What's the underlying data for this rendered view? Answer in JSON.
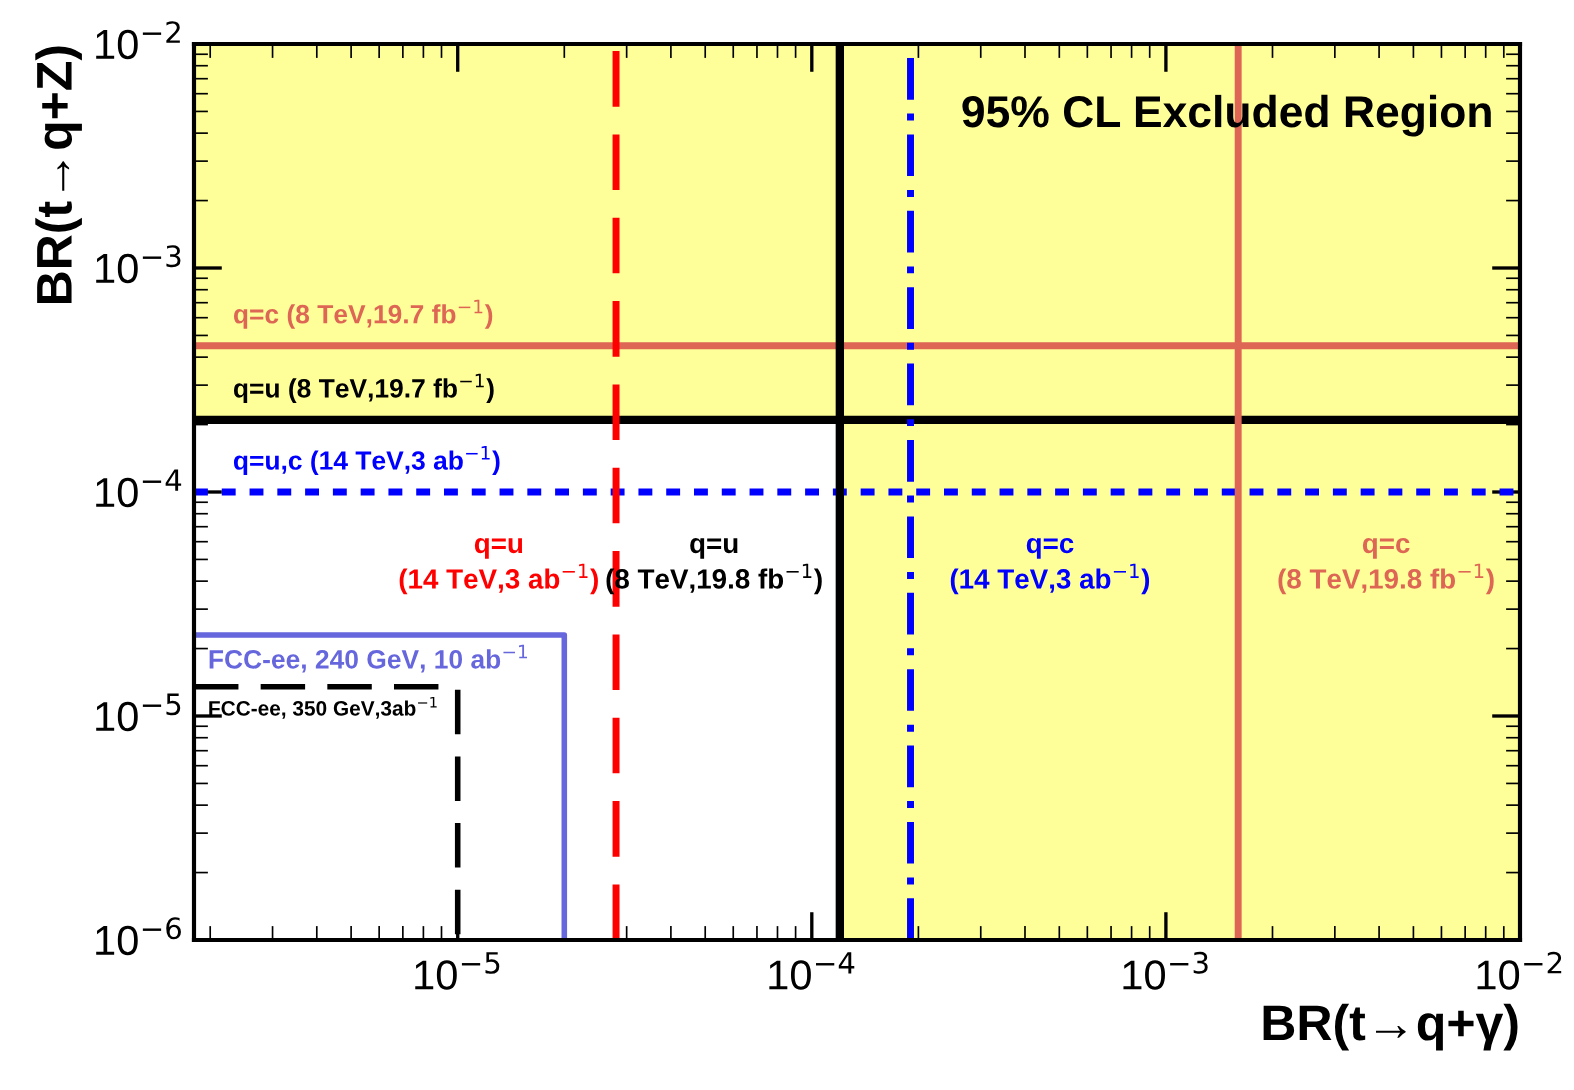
{
  "chart_data": {
    "type": "line",
    "xlabel": "BR(t→q+γ)",
    "ylabel": "BR(t→q+Z)",
    "log": "xy",
    "xlim": [
      1.8e-06,
      0.01
    ],
    "ylim": [
      1e-06,
      0.01
    ],
    "xticks": [
      {
        "value": 1e-05,
        "label": "10$^{−5}$"
      },
      {
        "value": 0.0001,
        "label": "10$^{−4}$"
      },
      {
        "value": 0.001,
        "label": "10$^{−3}$"
      },
      {
        "value": 0.01,
        "label": "10$^{−2}$"
      }
    ],
    "yticks": [
      {
        "value": 1e-06,
        "label": "10$^{−6}$"
      },
      {
        "value": 1e-05,
        "label": "10$^{−5}$"
      },
      {
        "value": 0.0001,
        "label": "10$^{−4}$"
      },
      {
        "value": 0.001,
        "label": "10$^{−3}$"
      },
      {
        "value": 0.01,
        "label": "10$^{−2}$"
      }
    ],
    "grid": false,
    "bands": [
      {
        "axis": "y",
        "from": 0.00021,
        "to": 0.01,
        "color": "#ffff99"
      },
      {
        "axis": "x",
        "from": 0.00012,
        "to": 0.01,
        "color": "#ffff99"
      }
    ],
    "series": [
      {
        "name": "FCC-ee, 240 GeV, 10 ab$^{−1}$",
        "color": "#6666dd",
        "line_style": "solid",
        "x": [
          1.8e-06,
          2e-05,
          2e-05
        ],
        "values": [
          2.3e-05,
          2.3e-05,
          1e-06
        ]
      },
      {
        "name": "FCC-ee, 350 GeV,3ab$^{−1}$",
        "color": "#000000",
        "line_style": "dashed",
        "x": [
          1.8e-06,
          1e-05,
          1e-05
        ],
        "values": [
          1.35e-05,
          1.35e-05,
          1e-06
        ]
      }
    ],
    "ref_lines": [
      {
        "axis": "y",
        "value": 0.00045,
        "color": "#dd6655",
        "line_style": "solid",
        "label": "q=c (8 TeV,19.7 fb$^{−1}$)"
      },
      {
        "axis": "y",
        "value": 0.00021,
        "color": "#000000",
        "line_style": "solid",
        "label": "q=u (8 TeV,19.7 fb$^{−1}$)"
      },
      {
        "axis": "y",
        "value": 0.0001,
        "color": "#0000ff",
        "line_style": "dotted",
        "label": "q=u,c (14 TeV,3 ab$^{−1}$)"
      },
      {
        "axis": "x",
        "value": 2.8e-05,
        "color": "#ff0000",
        "line_style": "dashed",
        "label": "q=u\n(14 TeV,3 ab$^{−1}$)"
      },
      {
        "axis": "x",
        "value": 0.00012,
        "color": "#000000",
        "line_style": "solid",
        "label": "q=u\n(8 TeV,19.8 fb$^{−1}$)"
      },
      {
        "axis": "x",
        "value": 0.00019,
        "color": "#0000ff",
        "line_style": "dashdot",
        "label": "q=c\n(14 TeV,3 ab$^{−1}$)"
      },
      {
        "axis": "x",
        "value": 0.0016,
        "color": "#dd6655",
        "line_style": "solid",
        "label": "q=c\n(8 TeV,19.8 fb$^{−1}$)"
      }
    ],
    "annotations": [
      "95% CL Excluded Region"
    ]
  }
}
